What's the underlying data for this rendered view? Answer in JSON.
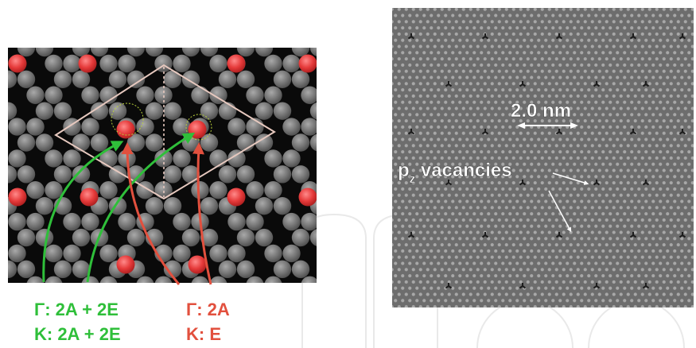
{
  "figure": {
    "left_panel": {
      "description_free": true,
      "green_labels": {
        "line1": "Γ: 2A + 2E",
        "line2": "K: 2A + 2E"
      },
      "red_labels": {
        "line1": "Γ: 2A",
        "line2": "K: E"
      }
    },
    "right_panel": {
      "scale_label": "2.0 nm",
      "vacancy_label_prefix": "p",
      "vacancy_label_subscript": "z",
      "vacancy_label_suffix": " vacancies"
    }
  },
  "colors": {
    "atom_gray": "#767676",
    "hole_black": "#0a0a0a",
    "vacancy_red": "#e53a3a",
    "unit_cell": "#e7c9bf",
    "green_arrow": "#2fbf3a",
    "red_arrow": "#e2503e",
    "right_bg": "#6d6d6d",
    "right_dot": "#a8a8a8",
    "watermark": "#e9e9e9"
  }
}
